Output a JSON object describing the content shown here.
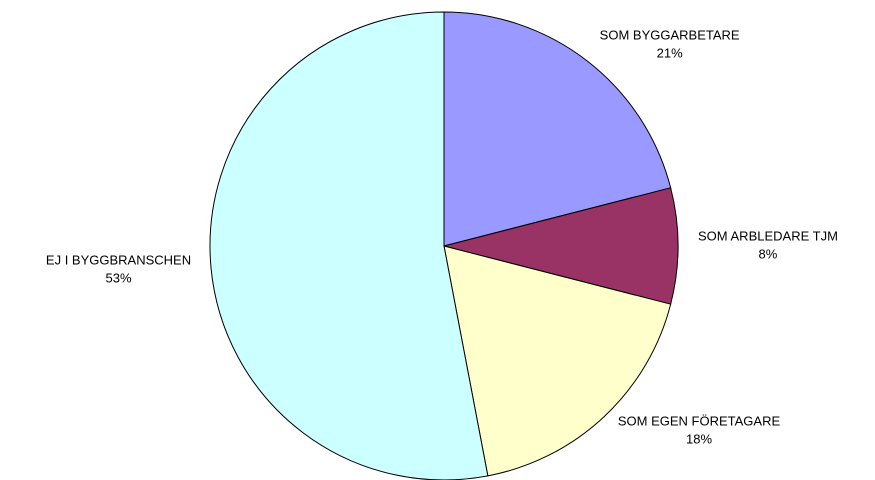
{
  "chart_data": {
    "type": "pie",
    "categories": [
      "SOM BYGGARBETARE",
      "SOM ARBLEDARE TJM",
      "SOM EGEN FÖRETAGARE",
      "EJ I BYGGBRANSCHEN"
    ],
    "values": [
      21,
      8,
      18,
      53
    ],
    "value_labels": [
      "21%",
      "8%",
      "18%",
      "53%"
    ],
    "colors": [
      "#9999ff",
      "#993366",
      "#ffffcc",
      "#ccffff"
    ]
  }
}
